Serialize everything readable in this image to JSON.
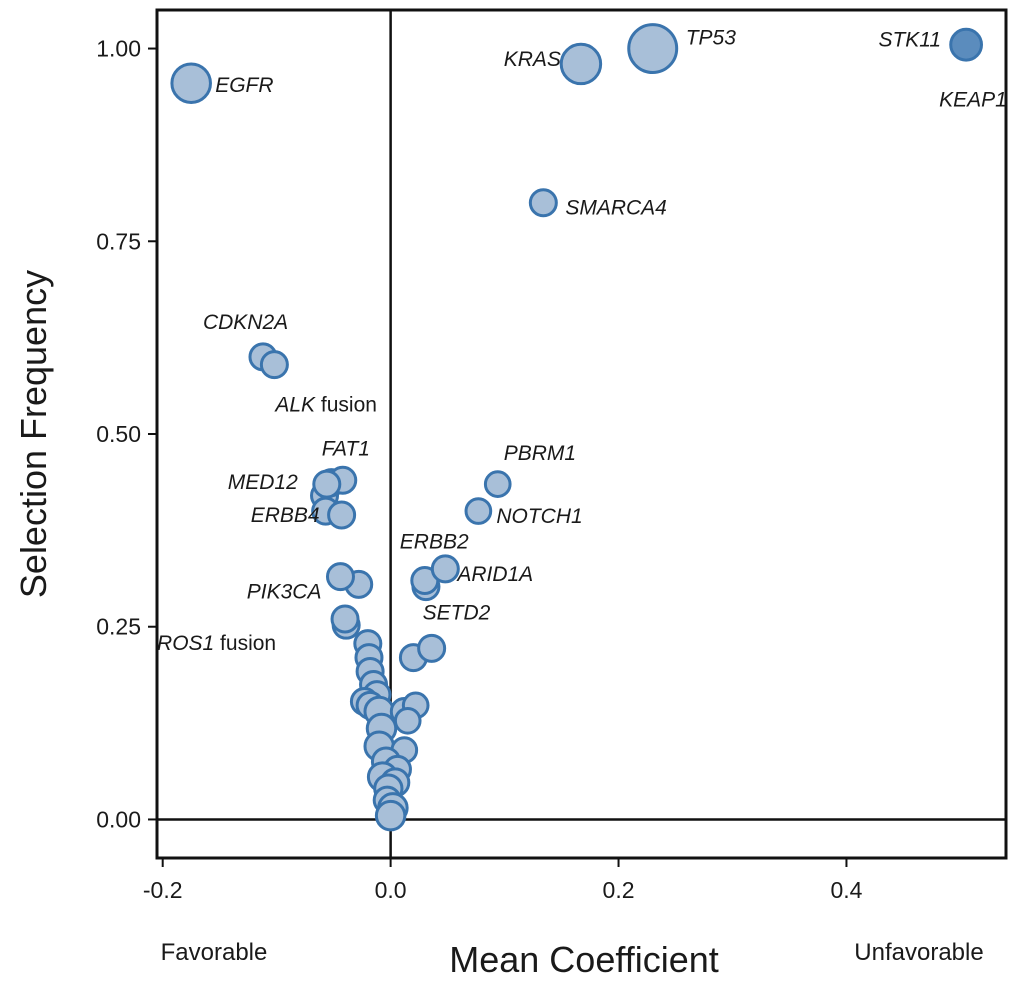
{
  "chart_data": {
    "type": "scatter",
    "xlabel": "Mean Coefficient",
    "ylabel": "Selection Frequency",
    "left_annotation": "Favorable",
    "right_annotation": "Unfavorable",
    "xlim": [
      -0.205,
      0.54
    ],
    "ylim": [
      -0.05,
      1.05
    ],
    "xticks": [
      {
        "value": -0.2,
        "label": "-0.2"
      },
      {
        "value": 0.0,
        "label": "0.0"
      },
      {
        "value": 0.2,
        "label": "0.2"
      },
      {
        "value": 0.4,
        "label": "0.4"
      }
    ],
    "yticks": [
      {
        "value": 0.0,
        "label": "0.00"
      },
      {
        "value": 0.25,
        "label": "0.25"
      },
      {
        "value": 0.5,
        "label": "0.50"
      },
      {
        "value": 0.75,
        "label": "0.75"
      },
      {
        "value": 1.0,
        "label": "1.00"
      }
    ],
    "reference_lines": {
      "x": 0,
      "y": 0
    },
    "point_fill": "#a8bfd8",
    "point_stroke": "#3a74ad",
    "highlight_fill": "#5b8cbd",
    "labeled_points": [
      {
        "name": "EGFR",
        "suffix": "",
        "x": -0.175,
        "y": 0.955,
        "size": 2.2
      },
      {
        "name": "KRAS",
        "suffix": "",
        "x": 0.167,
        "y": 0.98,
        "size": 2.3
      },
      {
        "name": "TP53",
        "suffix": "",
        "x": 0.23,
        "y": 1.0,
        "size": 3.4
      },
      {
        "name": "STK11",
        "suffix": "",
        "x": 0.505,
        "y": 1.005,
        "size": 1.4,
        "highlight": true
      },
      {
        "name": "KEAP1",
        "suffix": "",
        "x": 0.505,
        "y": 1.005,
        "size": 0.0,
        "highlight": true
      },
      {
        "name": "SMARCA4",
        "suffix": "",
        "x": 0.134,
        "y": 0.8,
        "size": 1.0
      },
      {
        "name": "CDKN2A",
        "suffix": "",
        "x": -0.112,
        "y": 0.6,
        "size": 1.0
      },
      {
        "name": "ALK",
        "suffix": " fusion",
        "x": -0.102,
        "y": 0.59,
        "size": 1.0
      },
      {
        "name": "FAT1",
        "suffix": "",
        "x": -0.042,
        "y": 0.44,
        "size": 1.0
      },
      {
        "name": "MED12",
        "suffix": "",
        "x": -0.056,
        "y": 0.435,
        "size": 1.0
      },
      {
        "name": "ERBB4",
        "suffix": "",
        "x": -0.043,
        "y": 0.395,
        "size": 1.0
      },
      {
        "name": "PBRM1",
        "suffix": "",
        "x": 0.094,
        "y": 0.435,
        "size": 0.9
      },
      {
        "name": "NOTCH1",
        "suffix": "",
        "x": 0.077,
        "y": 0.4,
        "size": 0.9
      },
      {
        "name": "ERBB2",
        "suffix": "",
        "x": 0.03,
        "y": 0.31,
        "size": 1.0
      },
      {
        "name": "ARID1A",
        "suffix": "",
        "x": 0.048,
        "y": 0.325,
        "size": 1.0
      },
      {
        "name": "PIK3CA",
        "suffix": "",
        "x": -0.044,
        "y": 0.315,
        "size": 1.0
      },
      {
        "name": "SETD2",
        "suffix": "",
        "x": 0.036,
        "y": 0.222,
        "size": 1.0
      },
      {
        "name": "ROS1",
        "suffix": " fusion",
        "x": -0.04,
        "y": 0.26,
        "size": 1.0
      }
    ],
    "points": [
      {
        "x": -0.058,
        "y": 0.42,
        "size": 1.0
      },
      {
        "x": -0.057,
        "y": 0.4,
        "size": 1.0
      },
      {
        "x": -0.052,
        "y": 0.437,
        "size": 1.0
      },
      {
        "x": -0.028,
        "y": 0.305,
        "size": 1.0
      },
      {
        "x": -0.039,
        "y": 0.252,
        "size": 1.0
      },
      {
        "x": 0.031,
        "y": 0.302,
        "size": 1.0
      },
      {
        "x": 0.02,
        "y": 0.21,
        "size": 1.0
      },
      {
        "x": -0.02,
        "y": 0.228,
        "size": 1.0
      },
      {
        "x": -0.019,
        "y": 0.21,
        "size": 1.0
      },
      {
        "x": -0.018,
        "y": 0.192,
        "size": 1.0
      },
      {
        "x": -0.015,
        "y": 0.175,
        "size": 1.0
      },
      {
        "x": -0.012,
        "y": 0.162,
        "size": 1.0
      },
      {
        "x": -0.023,
        "y": 0.153,
        "size": 1.0
      },
      {
        "x": -0.018,
        "y": 0.148,
        "size": 1.0
      },
      {
        "x": -0.01,
        "y": 0.14,
        "size": 1.2
      },
      {
        "x": 0.012,
        "y": 0.14,
        "size": 1.0
      },
      {
        "x": 0.022,
        "y": 0.148,
        "size": 0.9
      },
      {
        "x": 0.015,
        "y": 0.128,
        "size": 0.9
      },
      {
        "x": -0.008,
        "y": 0.118,
        "size": 1.2
      },
      {
        "x": -0.01,
        "y": 0.095,
        "size": 1.2
      },
      {
        "x": 0.012,
        "y": 0.09,
        "size": 0.9
      },
      {
        "x": -0.004,
        "y": 0.075,
        "size": 1.1
      },
      {
        "x": 0.006,
        "y": 0.065,
        "size": 1.0
      },
      {
        "x": -0.007,
        "y": 0.055,
        "size": 1.2
      },
      {
        "x": 0.004,
        "y": 0.048,
        "size": 1.1
      },
      {
        "x": -0.002,
        "y": 0.04,
        "size": 1.1
      },
      {
        "x": -0.003,
        "y": 0.025,
        "size": 1.0
      },
      {
        "x": 0.002,
        "y": 0.015,
        "size": 1.2
      },
      {
        "x": 0.0,
        "y": 0.005,
        "size": 1.2
      }
    ]
  }
}
